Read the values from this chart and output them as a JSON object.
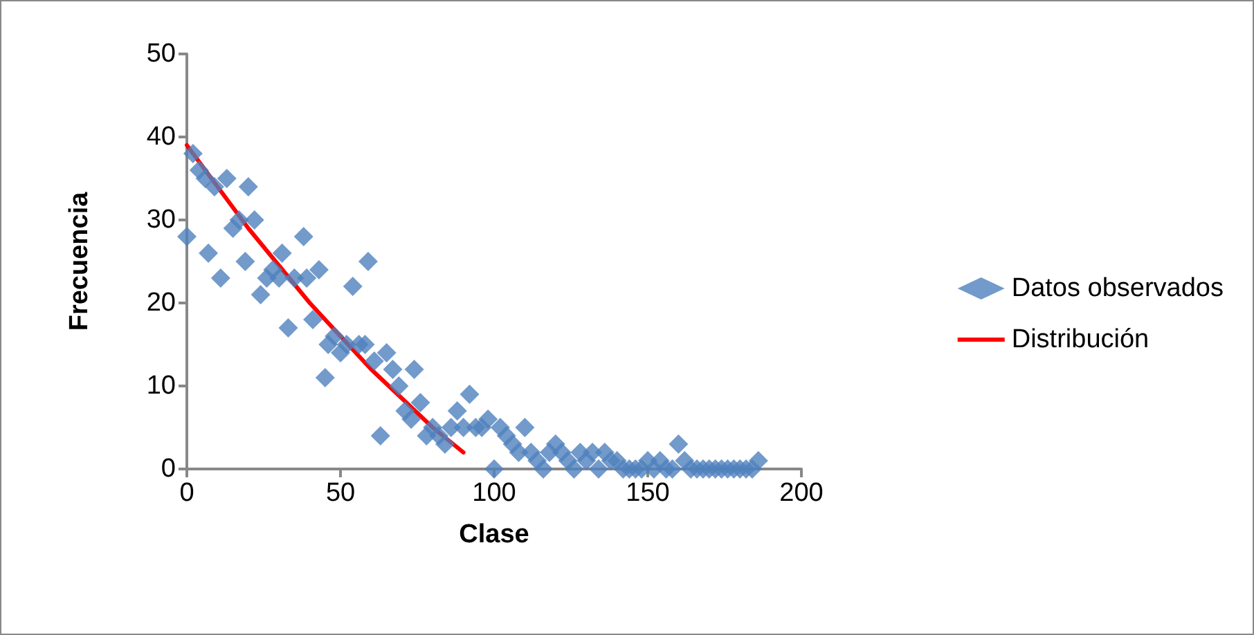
{
  "chart_data": {
    "type": "scatter",
    "xlabel": "Clase",
    "ylabel": "Frecuencia",
    "xlim": [
      0,
      200
    ],
    "xticks": [
      0,
      50,
      100,
      150,
      200
    ],
    "ylim": [
      0,
      50
    ],
    "yticks": [
      0,
      10,
      20,
      30,
      40,
      50
    ],
    "grid": false,
    "legend": "right",
    "marker": "diamond",
    "series": [
      {
        "name": "Datos observados",
        "color": "#4f81bd",
        "x": [
          0,
          2,
          4,
          6,
          7,
          9,
          11,
          13,
          15,
          17,
          19,
          20,
          22,
          24,
          26,
          28,
          30,
          31,
          33,
          35,
          38,
          39,
          41,
          43,
          45,
          46,
          48,
          50,
          52,
          54,
          56,
          58,
          59,
          61,
          63,
          65,
          67,
          69,
          71,
          73,
          74,
          76,
          78,
          80,
          82,
          84,
          86,
          88,
          90,
          92,
          94,
          96,
          98,
          100,
          102,
          104,
          106,
          108,
          110,
          112,
          114,
          116,
          118,
          120,
          122,
          124,
          126,
          128,
          130,
          132,
          134,
          136,
          138,
          140,
          142,
          144,
          146,
          148,
          150,
          152,
          154,
          156,
          158,
          160,
          162,
          164,
          166,
          168,
          170,
          172,
          174,
          176,
          178,
          180,
          182,
          184,
          186
        ],
        "values": [
          28,
          38,
          36,
          35,
          26,
          34,
          23,
          35,
          29,
          30,
          25,
          34,
          30,
          21,
          23,
          24,
          23,
          26,
          17,
          23,
          28,
          23,
          18,
          24,
          11,
          15,
          16,
          14,
          15,
          22,
          15,
          15,
          25,
          13,
          4,
          14,
          12,
          10,
          7,
          6,
          12,
          8,
          4,
          5,
          4,
          3,
          5,
          7,
          5,
          9,
          5,
          5,
          6,
          0,
          5,
          4,
          3,
          2,
          5,
          2,
          1,
          0,
          2,
          3,
          2,
          1,
          0,
          2,
          1,
          2,
          0,
          2,
          1,
          1,
          0,
          0,
          0,
          0,
          1,
          0,
          1,
          0,
          0,
          3,
          1,
          0,
          0,
          0,
          0,
          0,
          0,
          0,
          0,
          0,
          0,
          0,
          1
        ]
      },
      {
        "name": "Distribución",
        "color": "#ff0000",
        "type": "line",
        "marker": "none",
        "x": [
          0,
          20,
          40,
          60,
          80,
          90
        ],
        "values": [
          39,
          29,
          20,
          12,
          5,
          2
        ]
      }
    ]
  }
}
